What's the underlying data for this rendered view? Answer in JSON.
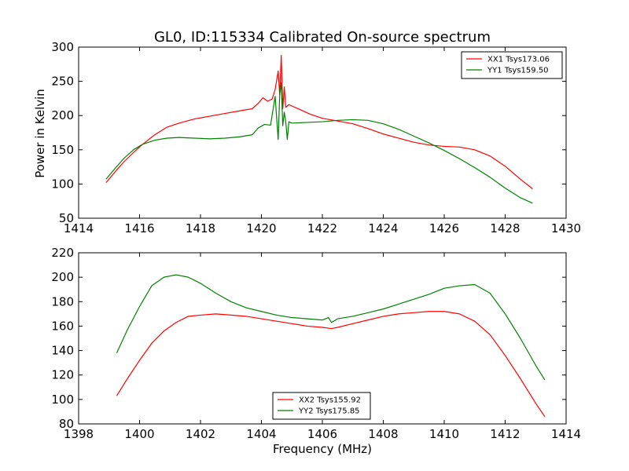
{
  "chart_data": [
    {
      "type": "line",
      "title": "GL0, ID:115334 Calibrated On-source spectrum",
      "xlabel": "",
      "ylabel": "Power in Kelvin",
      "xlim": [
        1414,
        1430
      ],
      "ylim": [
        50,
        300
      ],
      "xticks": [
        "1414",
        "1416",
        "1418",
        "1420",
        "1422",
        "1424",
        "1426",
        "1428",
        "1430"
      ],
      "yticks": [
        "50",
        "100",
        "150",
        "200",
        "250",
        "300"
      ],
      "legend": "upper-right",
      "series": [
        {
          "name": "XX1 Tsys173.06",
          "color": "#ff0000",
          "x": [
            1414.9,
            1415.2,
            1415.5,
            1415.8,
            1416.1,
            1416.5,
            1416.9,
            1417.3,
            1417.8,
            1418.3,
            1418.8,
            1419.3,
            1419.7,
            1419.9,
            1420.05,
            1420.2,
            1420.35,
            1420.45,
            1420.55,
            1420.6,
            1420.65,
            1420.7,
            1420.75,
            1420.8,
            1420.9,
            1421.0,
            1421.3,
            1421.6,
            1422.0,
            1422.5,
            1423.0,
            1423.5,
            1424.0,
            1424.5,
            1425.0,
            1425.5,
            1426.0,
            1426.5,
            1427.0,
            1427.5,
            1428.0,
            1428.5,
            1428.9
          ],
          "values": [
            102,
            118,
            133,
            146,
            158,
            172,
            183,
            189,
            195,
            199,
            203,
            207,
            210,
            218,
            226,
            221,
            224,
            238,
            265,
            230,
            288,
            210,
            242,
            212,
            216,
            214,
            208,
            202,
            196,
            192,
            188,
            181,
            173,
            167,
            161,
            157,
            155,
            154,
            150,
            141,
            126,
            107,
            93
          ]
        },
        {
          "name": "YY1 Tsys159.50",
          "color": "#008000",
          "x": [
            1414.9,
            1415.2,
            1415.5,
            1415.8,
            1416.1,
            1416.5,
            1416.9,
            1417.3,
            1417.8,
            1418.3,
            1418.8,
            1419.3,
            1419.7,
            1419.9,
            1420.1,
            1420.3,
            1420.45,
            1420.55,
            1420.6,
            1420.65,
            1420.7,
            1420.75,
            1420.8,
            1420.85,
            1420.9,
            1421.0,
            1421.5,
            1422.0,
            1422.5,
            1423.0,
            1423.5,
            1424.0,
            1424.5,
            1425.0,
            1425.5,
            1426.0,
            1426.5,
            1427.0,
            1427.5,
            1428.0,
            1428.5,
            1428.9
          ],
          "values": [
            107,
            123,
            138,
            150,
            158,
            164,
            167,
            168,
            167,
            166,
            167,
            169,
            172,
            182,
            187,
            186,
            228,
            165,
            230,
            248,
            185,
            205,
            190,
            165,
            191,
            189,
            190,
            191,
            193,
            194,
            193,
            188,
            180,
            170,
            160,
            149,
            137,
            124,
            110,
            94,
            80,
            72
          ]
        }
      ]
    },
    {
      "type": "line",
      "title": "",
      "xlabel": "Frequency (MHz)",
      "ylabel": "",
      "xlim": [
        1398,
        1414
      ],
      "ylim": [
        80,
        220
      ],
      "xticks": [
        "1398",
        "1400",
        "1402",
        "1404",
        "1406",
        "1408",
        "1410",
        "1412",
        "1414"
      ],
      "yticks": [
        "80",
        "100",
        "120",
        "140",
        "160",
        "180",
        "200",
        "220"
      ],
      "legend": "lower-center",
      "series": [
        {
          "name": "XX2 Tsys155.92",
          "color": "#ff0000",
          "x": [
            1399.25,
            1399.6,
            1400.0,
            1400.4,
            1400.8,
            1401.2,
            1401.6,
            1402.0,
            1402.5,
            1403.0,
            1403.5,
            1404.0,
            1404.5,
            1405.0,
            1405.5,
            1406.0,
            1406.3,
            1406.5,
            1407.0,
            1407.5,
            1408.0,
            1408.5,
            1409.0,
            1409.5,
            1410.0,
            1410.5,
            1411.0,
            1411.5,
            1412.0,
            1412.5,
            1413.0,
            1413.3
          ],
          "values": [
            103,
            117,
            132,
            146,
            156,
            163,
            168,
            169,
            170,
            169,
            168,
            166,
            164,
            162,
            160,
            159,
            158,
            159,
            162,
            165,
            168,
            170,
            171,
            172,
            172,
            170,
            164,
            153,
            136,
            117,
            97,
            86
          ]
        },
        {
          "name": "YY2 Tsys175.85",
          "color": "#008000",
          "x": [
            1399.25,
            1399.6,
            1400.0,
            1400.4,
            1400.8,
            1401.2,
            1401.6,
            1402.0,
            1402.5,
            1403.0,
            1403.5,
            1404.0,
            1404.5,
            1405.0,
            1405.5,
            1406.0,
            1406.2,
            1406.3,
            1406.5,
            1407.0,
            1407.5,
            1408.0,
            1408.5,
            1409.0,
            1409.5,
            1410.0,
            1410.5,
            1411.0,
            1411.5,
            1412.0,
            1412.5,
            1413.0,
            1413.3
          ],
          "values": [
            138,
            157,
            176,
            193,
            200,
            202,
            200,
            195,
            187,
            180,
            175,
            172,
            169,
            167,
            166,
            165,
            167,
            163,
            166,
            168,
            171,
            174,
            178,
            182,
            186,
            191,
            193,
            194,
            187,
            170,
            150,
            128,
            116
          ]
        }
      ]
    }
  ]
}
